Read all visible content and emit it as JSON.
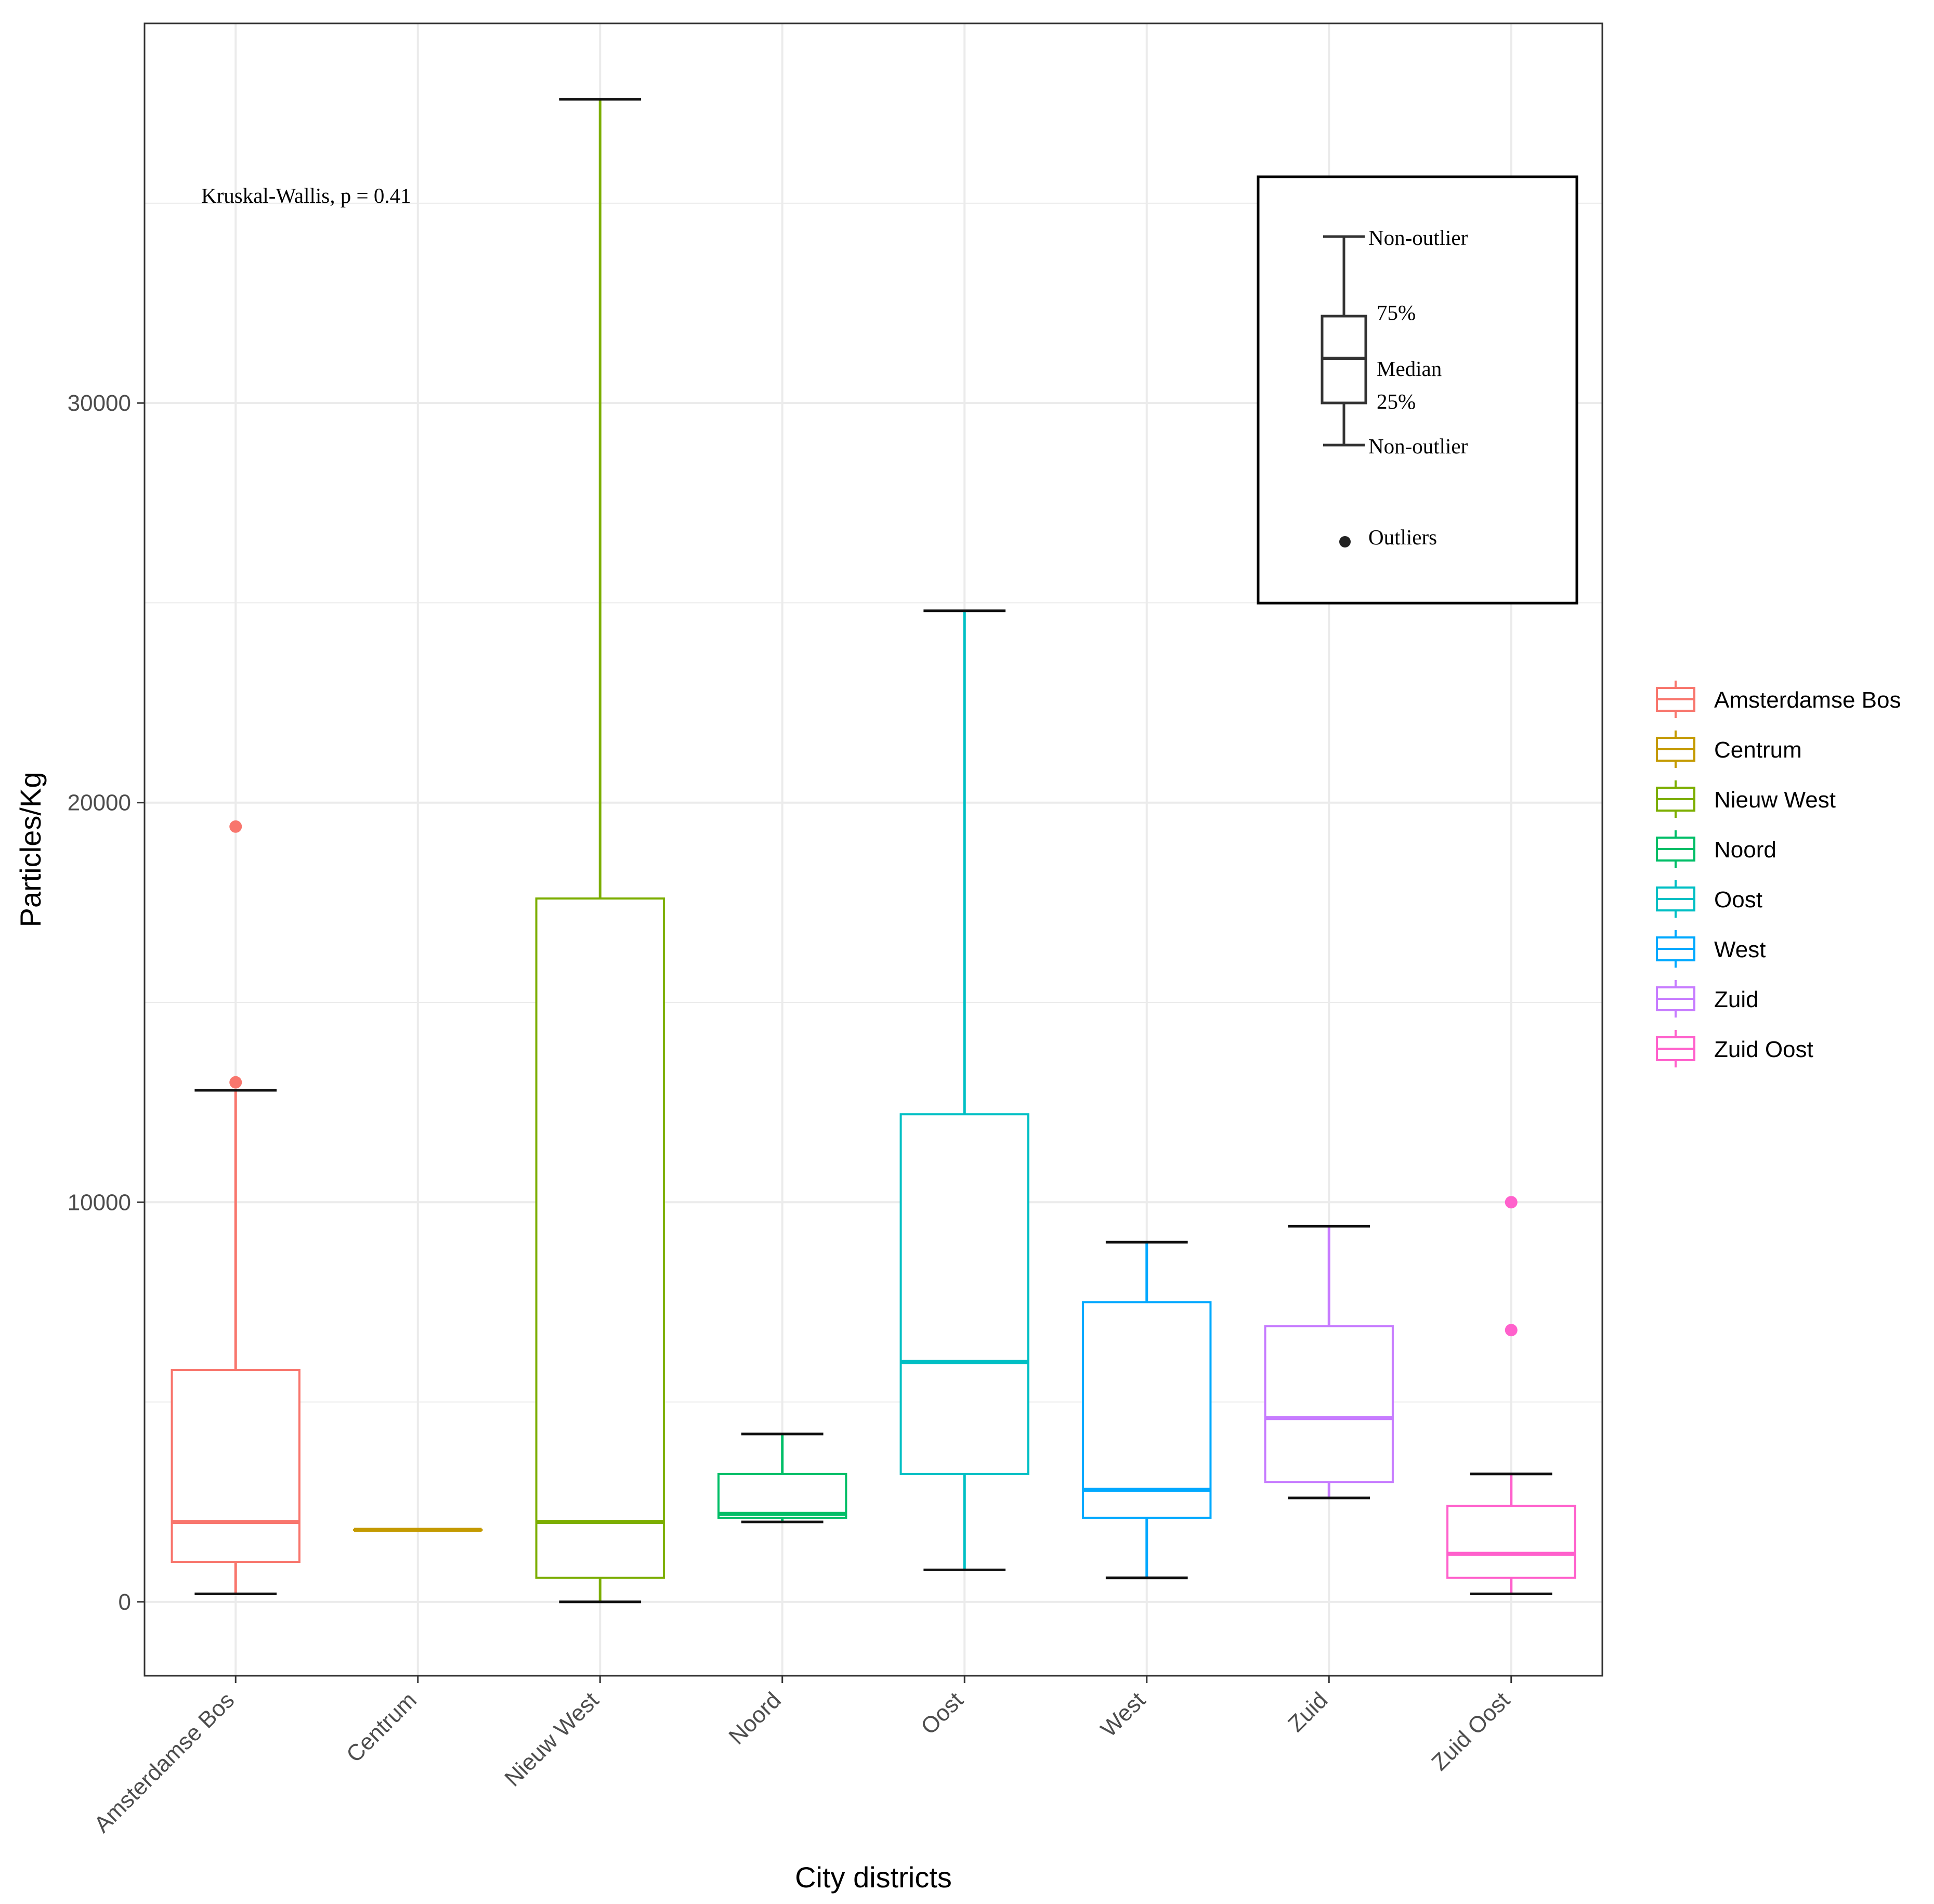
{
  "chart_data": {
    "type": "box",
    "title": "",
    "xlabel": "City districts",
    "ylabel": "Particles/Kg",
    "ylim": [
      -1850,
      39500
    ],
    "yticks": [
      0,
      10000,
      20000,
      30000
    ],
    "ytick_labels": [
      "0",
      "10000",
      "20000",
      "30000"
    ],
    "grid": true,
    "annotation": "Kruskal-Wallis, p = 0.41",
    "legend_position": "right",
    "categories": [
      "Amsterdamse Bos",
      "Centrum",
      "Nieuw West",
      "Noord",
      "Oost",
      "West",
      "Zuid",
      "Zuid Oost"
    ],
    "series": [
      {
        "name": "Amsterdamse Bos",
        "color": "#F8766D",
        "q1": 1000,
        "median": 2000,
        "q3": 5800,
        "whisker_low": 200,
        "whisker_high": 12800,
        "outliers": [
          13000,
          19400
        ]
      },
      {
        "name": "Centrum",
        "color": "#C49A00",
        "q1": 1800,
        "median": 1800,
        "q3": 1800,
        "whisker_low": 1800,
        "whisker_high": 1800,
        "outliers": []
      },
      {
        "name": "Nieuw West",
        "color": "#7CAE00",
        "q1": 600,
        "median": 2000,
        "q3": 17600,
        "whisker_low": 0,
        "whisker_high": 37600,
        "outliers": []
      },
      {
        "name": "Noord",
        "color": "#00BE67",
        "q1": 2100,
        "median": 2200,
        "q3": 3200,
        "whisker_low": 2000,
        "whisker_high": 4200,
        "outliers": []
      },
      {
        "name": "Oost",
        "color": "#00BFC4",
        "q1": 3200,
        "median": 6000,
        "q3": 12200,
        "whisker_low": 800,
        "whisker_high": 24800,
        "outliers": []
      },
      {
        "name": "West",
        "color": "#00A9FF",
        "q1": 2100,
        "median": 2800,
        "q3": 7500,
        "whisker_low": 600,
        "whisker_high": 9000,
        "outliers": []
      },
      {
        "name": "Zuid",
        "color": "#C77CFF",
        "q1": 3000,
        "median": 4600,
        "q3": 6900,
        "whisker_low": 2600,
        "whisker_high": 9400,
        "outliers": []
      },
      {
        "name": "Zuid Oost",
        "color": "#FF61CC",
        "q1": 600,
        "median": 1200,
        "q3": 2400,
        "whisker_low": 200,
        "whisker_high": 3200,
        "outliers": [
          6800,
          10000
        ]
      }
    ],
    "key_box": {
      "upper_whisker": "Non-outlier",
      "q3": "75%",
      "median": "Median",
      "q1": "25%",
      "lower_whisker": "Non-outlier",
      "outliers": "Outliers"
    }
  }
}
